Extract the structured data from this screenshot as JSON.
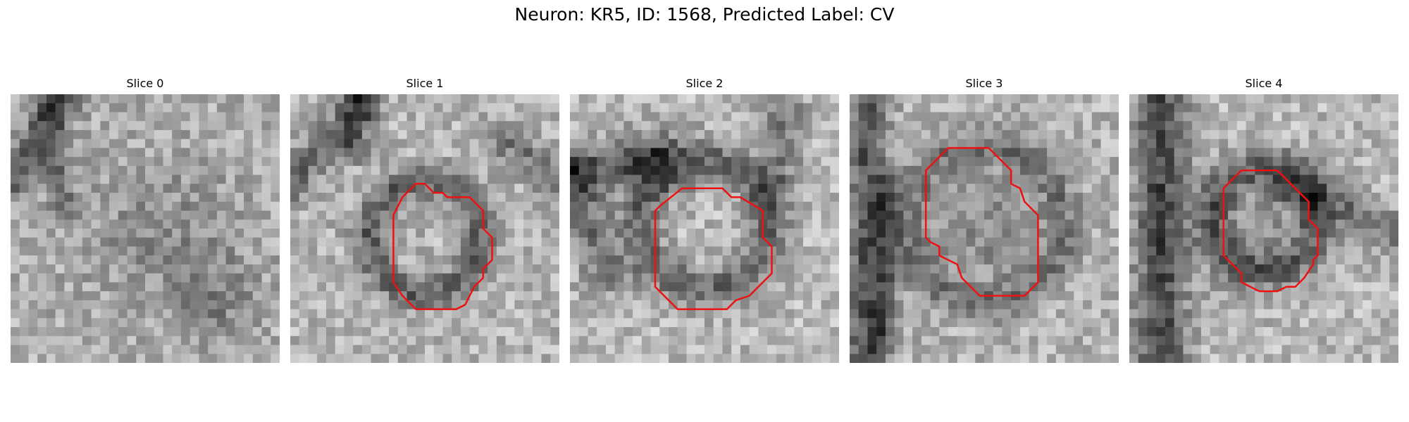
{
  "figure": {
    "title": "Neuron: KR5, ID: 1568, Predicted Label: CV"
  },
  "panels": [
    {
      "title": "Slice 0",
      "has_contour": false
    },
    {
      "title": "Slice 1",
      "has_contour": true
    },
    {
      "title": "Slice 2",
      "has_contour": true
    },
    {
      "title": "Slice 3",
      "has_contour": true
    },
    {
      "title": "Slice 4",
      "has_contour": true
    }
  ],
  "colors": {
    "contour": "#ee1111"
  }
}
